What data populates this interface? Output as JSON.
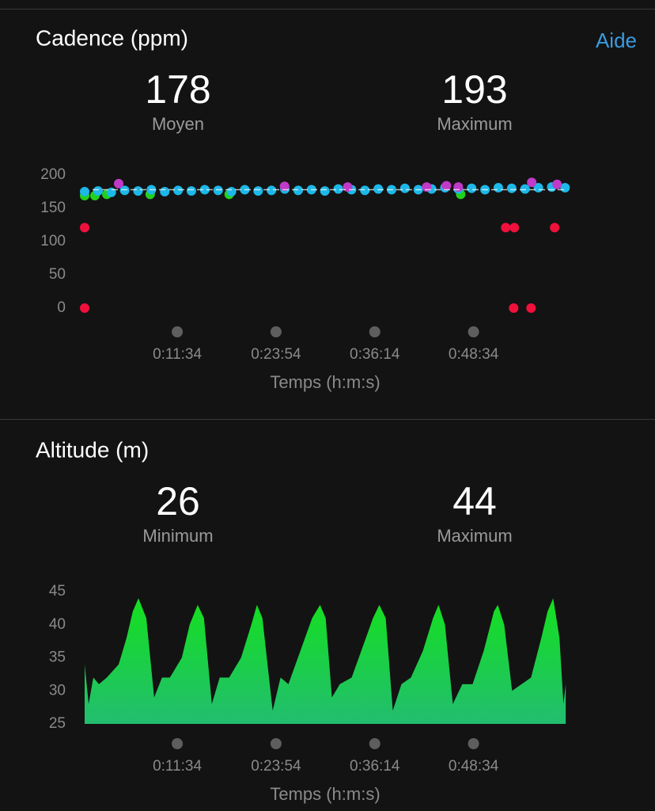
{
  "chart_data": [
    {
      "type": "scatter",
      "title": "Cadence (ppm)",
      "help": "Aide",
      "stats": [
        {
          "value": 178,
          "label": "Moyen"
        },
        {
          "value": 193,
          "label": "Maximum"
        }
      ],
      "xlabel": "Temps (h:m:s)",
      "xlim": [
        0,
        3610
      ],
      "xticks": [
        {
          "value": 694,
          "label": "0:11:34"
        },
        {
          "value": 1434,
          "label": "0:23:54"
        },
        {
          "value": 2174,
          "label": "0:36:14"
        },
        {
          "value": 2914,
          "label": "0:48:34"
        }
      ],
      "ylim": [
        0,
        200
      ],
      "yticks": [
        0,
        50,
        100,
        150,
        200
      ],
      "series": [
        {
          "color": "#22d11c",
          "x": [
            0,
            77,
            166,
            491,
            1083,
            2818
          ],
          "values": [
            169,
            169,
            171,
            171,
            171,
            171
          ]
        },
        {
          "color": "#1cb8e8",
          "x": [
            0,
            100,
            200,
            300,
            400,
            500,
            600,
            700,
            800,
            900,
            1000,
            1100,
            1200,
            1300,
            1400,
            1500,
            1600,
            1700,
            1800,
            1900,
            2000,
            2100,
            2200,
            2300,
            2400,
            2500,
            2600,
            2700,
            2800,
            2900,
            3000,
            3100,
            3200,
            3300,
            3400,
            3500,
            3600
          ],
          "values": [
            175,
            176,
            174,
            177,
            176,
            178,
            175,
            177,
            176,
            178,
            177,
            175,
            178,
            176,
            177,
            179,
            177,
            178,
            176,
            179,
            178,
            177,
            179,
            178,
            180,
            178,
            179,
            181,
            179,
            180,
            178,
            181,
            180,
            179,
            181,
            182,
            181
          ]
        },
        {
          "color": "#c03ac8",
          "x": [
            255,
            1498,
            1971,
            2563,
            2711,
            2800,
            3350,
            3540
          ],
          "values": [
            187,
            183,
            182,
            182,
            184,
            182,
            189,
            186
          ]
        },
        {
          "color": "#f0103c",
          "x": [
            0,
            0,
            3155,
            3220,
            3215,
            3345,
            3522
          ],
          "values": [
            121,
            0,
            121,
            121,
            0,
            0,
            121
          ]
        }
      ]
    },
    {
      "type": "area",
      "title": "Altitude (m)",
      "stats": [
        {
          "value": 26,
          "label": "Minimum"
        },
        {
          "value": 44,
          "label": "Maximum"
        }
      ],
      "xlabel": "Temps (h:m:s)",
      "xlim": [
        0,
        3610
      ],
      "xticks": [
        {
          "value": 694,
          "label": "0:11:34"
        },
        {
          "value": 1434,
          "label": "0:23:54"
        },
        {
          "value": 2174,
          "label": "0:36:14"
        },
        {
          "value": 2914,
          "label": "0:48:34"
        }
      ],
      "ylim": [
        25,
        45
      ],
      "yticks": [
        25,
        30,
        35,
        40,
        45
      ],
      "color": "#14e01e",
      "x": [
        0,
        30,
        65,
        107,
        166,
        255,
        314,
        361,
        403,
        462,
        521,
        580,
        639,
        728,
        787,
        847,
        894,
        953,
        1012,
        1083,
        1172,
        1249,
        1291,
        1332,
        1409,
        1468,
        1527,
        1616,
        1705,
        1764,
        1806,
        1853,
        1912,
        2001,
        2090,
        2161,
        2208,
        2256,
        2309,
        2374,
        2445,
        2534,
        2611,
        2652,
        2700,
        2759,
        2830,
        2907,
        2990,
        3067,
        3096,
        3144,
        3203,
        3274,
        3345,
        3422,
        3469,
        3511,
        3558,
        3588,
        3605
      ],
      "values": [
        34,
        28,
        32,
        31,
        32,
        34,
        38,
        42,
        44,
        41,
        29,
        32,
        32,
        35,
        40,
        43,
        41,
        28,
        32,
        32,
        35,
        40,
        43,
        41,
        27,
        32,
        31,
        36,
        41,
        43,
        41,
        29,
        31,
        32,
        37,
        41,
        43,
        41,
        27,
        31,
        32,
        36,
        41,
        43,
        40,
        28,
        31,
        31,
        36,
        42,
        43,
        40,
        30,
        31,
        32,
        38,
        42,
        44,
        38,
        28,
        31
      ]
    }
  ]
}
